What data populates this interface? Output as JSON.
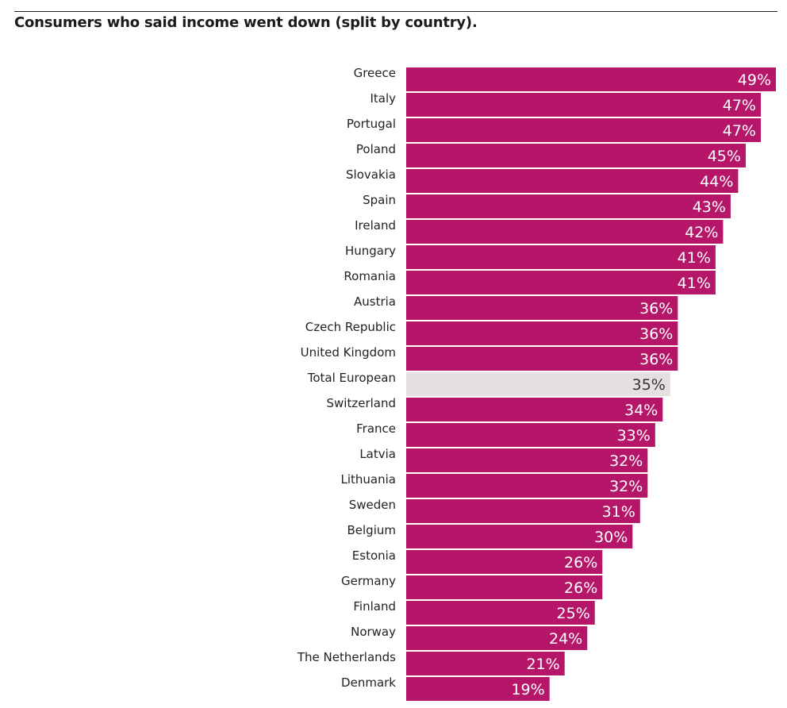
{
  "header": {
    "title": "Consumers who said income went down (split by country)."
  },
  "colors": {
    "bar": "#b5166a",
    "highlight_bar": "#e3e0df",
    "label_on_bar": "#ffffff",
    "label_on_highlight": "#333333",
    "category_text": "#222222"
  },
  "chart_data": {
    "type": "bar",
    "orientation": "horizontal",
    "title": "Consumers who said income went down (split by country).",
    "xlabel": "",
    "ylabel": "",
    "xlim": [
      0,
      49
    ],
    "grid": false,
    "value_format": "{v}%",
    "highlight_category": "Total European",
    "categories": [
      "Greece",
      "Italy",
      "Portugal",
      "Poland",
      "Slovakia",
      "Spain",
      "Ireland",
      "Hungary",
      "Romania",
      "Austria",
      "Czech Republic",
      "United Kingdom",
      "Total European",
      "Switzerland",
      "France",
      "Latvia",
      "Lithuania",
      "Sweden",
      "Belgium",
      "Estonia",
      "Germany",
      "Finland",
      "Norway",
      "The Netherlands",
      "Denmark"
    ],
    "values": [
      49,
      47,
      47,
      45,
      44,
      43,
      42,
      41,
      41,
      36,
      36,
      36,
      35,
      34,
      33,
      32,
      32,
      31,
      30,
      26,
      26,
      25,
      24,
      21,
      19
    ],
    "value_labels": [
      "49%",
      "47%",
      "47%",
      "45%",
      "44%",
      "43%",
      "42%",
      "41%",
      "41%",
      "36%",
      "36%",
      "36%",
      "35%",
      "34%",
      "33%",
      "32%",
      "32%",
      "31%",
      "30%",
      "26%",
      "26%",
      "25%",
      "24%",
      "21%",
      "19%"
    ]
  }
}
